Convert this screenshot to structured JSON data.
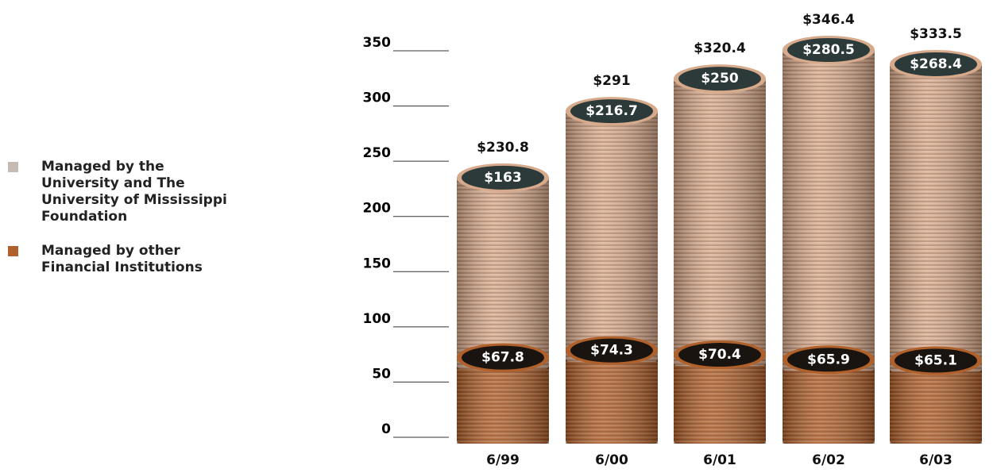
{
  "chart_data": {
    "type": "bar",
    "stacked": true,
    "categories": [
      "6/99",
      "6/00",
      "6/01",
      "6/02",
      "6/03"
    ],
    "series": [
      {
        "name": "Managed by other Financial Institutions",
        "color": "#b0602a",
        "values": [
          67.8,
          74.3,
          70.4,
          65.9,
          65.1
        ],
        "value_labels": [
          "$67.8",
          "$74.3",
          "$70.4",
          "$65.9",
          "$65.1"
        ]
      },
      {
        "name": "Managed by the University and The University of Mississippi Foundation",
        "color": "#d8aa8c",
        "values": [
          163,
          216.7,
          250,
          280.5,
          268.4
        ],
        "value_labels": [
          "$163",
          "$216.7",
          "$250",
          "$280.5",
          "$268.4"
        ]
      }
    ],
    "totals": [
      230.8,
      291,
      320.4,
      346.4,
      333.5
    ],
    "total_labels": [
      "$230.8",
      "$291",
      "$320.4",
      "$346.4",
      "$333.5"
    ],
    "ylim": [
      0,
      350
    ],
    "yticks": [
      0,
      50,
      100,
      150,
      200,
      250,
      300,
      350
    ]
  }
}
